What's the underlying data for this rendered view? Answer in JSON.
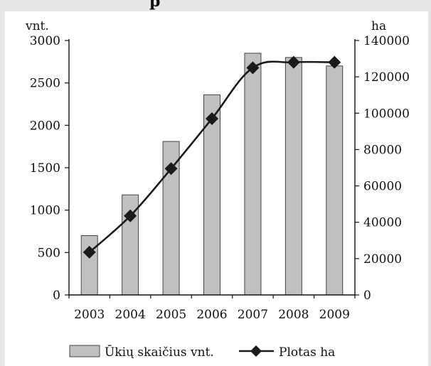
{
  "header_fragment": "p",
  "chart_data": {
    "type": "bar+line",
    "categories": [
      "2003",
      "2004",
      "2005",
      "2006",
      "2007",
      "2008",
      "2009"
    ],
    "left_axis": {
      "unit_label": "vnt.",
      "ylim": [
        0,
        3000
      ],
      "ticks": [
        0,
        500,
        1000,
        1500,
        2000,
        2500,
        3000
      ]
    },
    "right_axis": {
      "unit_label": "ha",
      "ylim": [
        0,
        140000
      ],
      "ticks": [
        0,
        20000,
        40000,
        60000,
        80000,
        100000,
        120000,
        140000
      ]
    },
    "series": [
      {
        "name": "Ūkių skaičius vnt.",
        "type": "bar",
        "axis": "left",
        "values": [
          700,
          1180,
          1810,
          2360,
          2850,
          2800,
          2700
        ]
      },
      {
        "name": "Plotas ha",
        "type": "line",
        "axis": "right",
        "marker": "diamond",
        "values": [
          23500,
          43500,
          69500,
          97000,
          125000,
          128000,
          128000
        ]
      }
    ],
    "grid": false,
    "legend_position": "bottom",
    "colors": {
      "bar_fill": "#c0c0c0",
      "bar_stroke": "#444444",
      "line": "#1a1a1a",
      "background": "#e6e6e6",
      "plot_bg": "#ffffff"
    }
  }
}
